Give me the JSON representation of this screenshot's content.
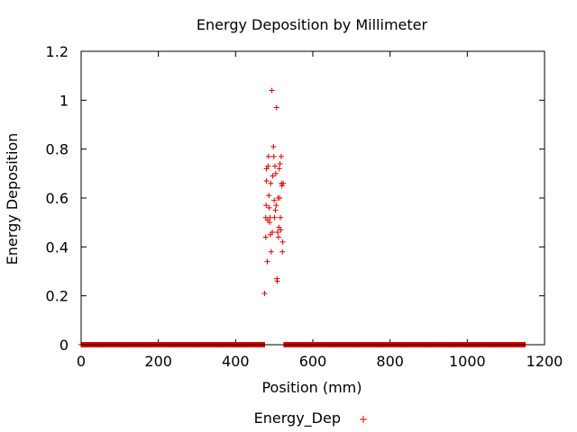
{
  "chart_data": {
    "type": "scatter",
    "title": "Energy Deposition by Millimeter",
    "xlabel": "Position (mm)",
    "ylabel": "Energy Deposition",
    "xlim": [
      0,
      1200
    ],
    "ylim": [
      0,
      1.2
    ],
    "xticks": [
      "0",
      "200",
      "400",
      "600",
      "800",
      "1000",
      "1200"
    ],
    "yticks": [
      "0",
      "0.2",
      "0.4",
      "0.6",
      "0.8",
      "1",
      "1.2"
    ],
    "grid": false,
    "legend_position": "bottom",
    "series": [
      {
        "name": "Energy_Dep",
        "color": "#dd0000",
        "marker": "plus",
        "zero_ranges": [
          [
            0,
            475
          ],
          [
            525,
            1150
          ]
        ],
        "points": [
          [
            475,
            0.21
          ],
          [
            478,
            0.44
          ],
          [
            478,
            0.52
          ],
          [
            479,
            0.57
          ],
          [
            480,
            0.67
          ],
          [
            480,
            0.72
          ],
          [
            482,
            0.34
          ],
          [
            483,
            0.51
          ],
          [
            484,
            0.73
          ],
          [
            485,
            0.77
          ],
          [
            486,
            0.61
          ],
          [
            487,
            0.56
          ],
          [
            488,
            0.5
          ],
          [
            489,
            0.52
          ],
          [
            490,
            0.45
          ],
          [
            491,
            0.66
          ],
          [
            492,
            0.38
          ],
          [
            494,
            1.04
          ],
          [
            495,
            0.46
          ],
          [
            496,
            0.69
          ],
          [
            498,
            0.81
          ],
          [
            499,
            0.77
          ],
          [
            500,
            0.59
          ],
          [
            501,
            0.52
          ],
          [
            502,
            0.73
          ],
          [
            503,
            0.55
          ],
          [
            504,
            0.7
          ],
          [
            505,
            0.57
          ],
          [
            506,
            0.97
          ],
          [
            507,
            0.27
          ],
          [
            508,
            0.26
          ],
          [
            509,
            0.46
          ],
          [
            510,
            0.6
          ],
          [
            511,
            0.44
          ],
          [
            512,
            0.48
          ],
          [
            513,
            0.72
          ],
          [
            514,
            0.6
          ],
          [
            515,
            0.74
          ],
          [
            516,
            0.52
          ],
          [
            517,
            0.47
          ],
          [
            518,
            0.77
          ],
          [
            519,
            0.66
          ],
          [
            520,
            0.65
          ],
          [
            521,
            0.38
          ],
          [
            522,
            0.42
          ],
          [
            523,
            0.66
          ]
        ]
      }
    ]
  }
}
